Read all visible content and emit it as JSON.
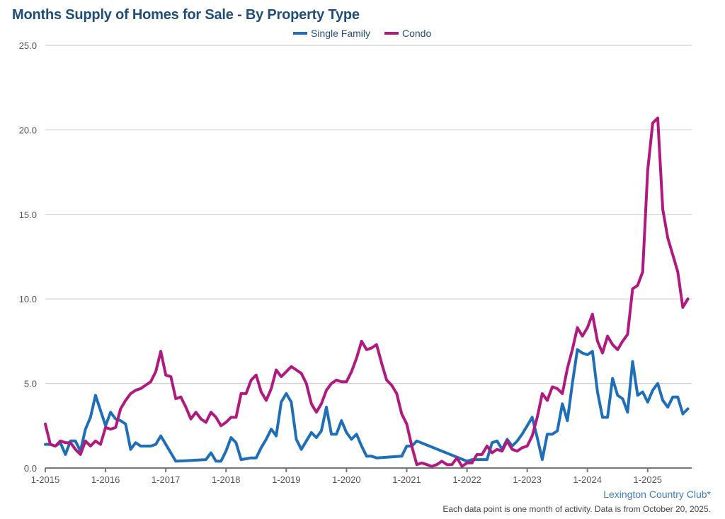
{
  "chart_data": {
    "type": "line",
    "title": "Months Supply of Homes for Sale - By Property Type",
    "xlabel": "",
    "ylabel": "",
    "ylim": [
      0,
      25
    ],
    "yticks": [
      "0.0",
      "5.0",
      "10.0",
      "15.0",
      "20.0",
      "25.0"
    ],
    "xticks": [
      "1-2015",
      "1-2016",
      "1-2017",
      "1-2018",
      "1-2019",
      "1-2020",
      "1-2021",
      "1-2022",
      "1-2023",
      "1-2024",
      "1-2025"
    ],
    "grid": true,
    "legend_position": "top-center",
    "series": [
      {
        "name": "Single Family",
        "color": "#1f6fb8",
        "points": [
          [
            "2015-01",
            1.4
          ],
          [
            "2015-02",
            1.4
          ],
          [
            "2015-03",
            1.3
          ],
          [
            "2015-04",
            1.5
          ],
          [
            "2015-05",
            0.8
          ],
          [
            "2015-06",
            1.6
          ],
          [
            "2015-07",
            1.6
          ],
          [
            "2015-08",
            1.0
          ],
          [
            "2015-09",
            2.3
          ],
          [
            "2015-10",
            3.0
          ],
          [
            "2015-11",
            4.3
          ],
          [
            "2015-12",
            3.4
          ],
          [
            "2016-01",
            2.5
          ],
          [
            "2016-02",
            3.3
          ],
          [
            "2016-03",
            2.9
          ],
          [
            "2016-04",
            2.8
          ],
          [
            "2016-05",
            2.6
          ],
          [
            "2016-06",
            1.1
          ],
          [
            "2016-07",
            1.5
          ],
          [
            "2016-08",
            1.3
          ],
          [
            "2016-09",
            1.3
          ],
          [
            "2016-10",
            1.3
          ],
          [
            "2016-11",
            1.4
          ],
          [
            "2016-12",
            1.9
          ],
          [
            "2017-01",
            1.4
          ],
          [
            "2017-03",
            0.4
          ],
          [
            "2017-09",
            0.5
          ],
          [
            "2017-10",
            0.9
          ],
          [
            "2017-11",
            0.4
          ],
          [
            "2017-12",
            0.4
          ],
          [
            "2018-01",
            1.0
          ],
          [
            "2018-02",
            1.8
          ],
          [
            "2018-03",
            1.5
          ],
          [
            "2018-04",
            0.5
          ],
          [
            "2018-06",
            0.6
          ],
          [
            "2018-07",
            0.6
          ],
          [
            "2018-08",
            1.2
          ],
          [
            "2018-09",
            1.7
          ],
          [
            "2018-10",
            2.3
          ],
          [
            "2018-11",
            1.9
          ],
          [
            "2018-12",
            3.9
          ],
          [
            "2019-01",
            4.4
          ],
          [
            "2019-02",
            3.9
          ],
          [
            "2019-03",
            1.7
          ],
          [
            "2019-04",
            1.1
          ],
          [
            "2019-05",
            1.6
          ],
          [
            "2019-06",
            2.1
          ],
          [
            "2019-07",
            1.8
          ],
          [
            "2019-08",
            2.2
          ],
          [
            "2019-09",
            3.6
          ],
          [
            "2019-10",
            2.0
          ],
          [
            "2019-11",
            2.0
          ],
          [
            "2019-12",
            2.8
          ],
          [
            "2020-01",
            2.1
          ],
          [
            "2020-02",
            1.7
          ],
          [
            "2020-03",
            2.0
          ],
          [
            "2020-04",
            1.3
          ],
          [
            "2020-05",
            0.7
          ],
          [
            "2020-06",
            0.7
          ],
          [
            "2020-07",
            0.6
          ],
          [
            "2020-12",
            0.7
          ],
          [
            "2021-01",
            1.3
          ],
          [
            "2021-02",
            1.3
          ],
          [
            "2021-03",
            1.6
          ],
          [
            "2022-01",
            0.4
          ],
          [
            "2022-02",
            0.5
          ],
          [
            "2022-05",
            0.5
          ],
          [
            "2022-06",
            1.5
          ],
          [
            "2022-07",
            1.6
          ],
          [
            "2022-08",
            1.1
          ],
          [
            "2022-09",
            1.7
          ],
          [
            "2022-10",
            1.3
          ],
          [
            "2022-11",
            1.6
          ],
          [
            "2022-12",
            2.0
          ],
          [
            "2023-01",
            2.5
          ],
          [
            "2023-02",
            3.0
          ],
          [
            "2023-03",
            1.8
          ],
          [
            "2023-04",
            0.5
          ],
          [
            "2023-05",
            2.0
          ],
          [
            "2023-06",
            2.0
          ],
          [
            "2023-07",
            2.2
          ],
          [
            "2023-08",
            3.8
          ],
          [
            "2023-09",
            2.8
          ],
          [
            "2023-10",
            5.0
          ],
          [
            "2023-11",
            7.0
          ],
          [
            "2023-12",
            6.8
          ],
          [
            "2024-01",
            6.7
          ],
          [
            "2024-02",
            6.9
          ],
          [
            "2024-03",
            4.5
          ],
          [
            "2024-04",
            3.0
          ],
          [
            "2024-05",
            3.0
          ],
          [
            "2024-06",
            5.3
          ],
          [
            "2024-07",
            4.3
          ],
          [
            "2024-08",
            4.1
          ],
          [
            "2024-09",
            3.3
          ],
          [
            "2024-10",
            6.3
          ],
          [
            "2024-11",
            4.3
          ],
          [
            "2024-12",
            4.5
          ],
          [
            "2025-01",
            3.9
          ],
          [
            "2025-02",
            4.6
          ],
          [
            "2025-03",
            5.0
          ],
          [
            "2025-04",
            4.0
          ],
          [
            "2025-05",
            3.6
          ],
          [
            "2025-06",
            4.2
          ],
          [
            "2025-07",
            4.2
          ],
          [
            "2025-08",
            3.2
          ],
          [
            "2025-09",
            3.5
          ]
        ]
      },
      {
        "name": "Condo",
        "color": "#b0197e",
        "points": [
          [
            "2015-01",
            2.6
          ],
          [
            "2015-02",
            1.4
          ],
          [
            "2015-03",
            1.3
          ],
          [
            "2015-04",
            1.6
          ],
          [
            "2015-05",
            1.5
          ],
          [
            "2015-06",
            1.5
          ],
          [
            "2015-07",
            1.1
          ],
          [
            "2015-08",
            0.8
          ],
          [
            "2015-09",
            1.6
          ],
          [
            "2015-10",
            1.3
          ],
          [
            "2015-11",
            1.6
          ],
          [
            "2015-12",
            1.4
          ],
          [
            "2016-01",
            2.4
          ],
          [
            "2016-02",
            2.3
          ],
          [
            "2016-03",
            2.4
          ],
          [
            "2016-04",
            3.5
          ],
          [
            "2016-05",
            4.0
          ],
          [
            "2016-06",
            4.4
          ],
          [
            "2016-07",
            4.6
          ],
          [
            "2016-08",
            4.7
          ],
          [
            "2016-09",
            4.9
          ],
          [
            "2016-10",
            5.1
          ],
          [
            "2016-11",
            5.7
          ],
          [
            "2016-12",
            6.9
          ],
          [
            "2017-01",
            5.5
          ],
          [
            "2017-02",
            5.4
          ],
          [
            "2017-03",
            4.1
          ],
          [
            "2017-04",
            4.2
          ],
          [
            "2017-05",
            3.6
          ],
          [
            "2017-06",
            2.9
          ],
          [
            "2017-07",
            3.3
          ],
          [
            "2017-08",
            2.9
          ],
          [
            "2017-09",
            2.7
          ],
          [
            "2017-10",
            3.3
          ],
          [
            "2017-11",
            3.0
          ],
          [
            "2017-12",
            2.5
          ],
          [
            "2018-01",
            2.7
          ],
          [
            "2018-02",
            3.0
          ],
          [
            "2018-03",
            3.0
          ],
          [
            "2018-04",
            4.4
          ],
          [
            "2018-05",
            4.4
          ],
          [
            "2018-06",
            5.2
          ],
          [
            "2018-07",
            5.5
          ],
          [
            "2018-08",
            4.5
          ],
          [
            "2018-09",
            4.0
          ],
          [
            "2018-10",
            4.7
          ],
          [
            "2018-11",
            5.8
          ],
          [
            "2018-12",
            5.4
          ],
          [
            "2019-01",
            5.7
          ],
          [
            "2019-02",
            6.0
          ],
          [
            "2019-03",
            5.8
          ],
          [
            "2019-04",
            5.6
          ],
          [
            "2019-05",
            5.0
          ],
          [
            "2019-06",
            3.8
          ],
          [
            "2019-07",
            3.3
          ],
          [
            "2019-08",
            3.8
          ],
          [
            "2019-09",
            4.6
          ],
          [
            "2019-10",
            5.0
          ],
          [
            "2019-11",
            5.2
          ],
          [
            "2019-12",
            5.1
          ],
          [
            "2020-01",
            5.1
          ],
          [
            "2020-02",
            5.7
          ],
          [
            "2020-03",
            6.5
          ],
          [
            "2020-04",
            7.5
          ],
          [
            "2020-05",
            7.0
          ],
          [
            "2020-06",
            7.1
          ],
          [
            "2020-07",
            7.3
          ],
          [
            "2020-08",
            6.2
          ],
          [
            "2020-09",
            5.2
          ],
          [
            "2020-10",
            4.9
          ],
          [
            "2020-11",
            4.4
          ],
          [
            "2020-12",
            3.2
          ],
          [
            "2021-01",
            2.6
          ],
          [
            "2021-02",
            1.3
          ],
          [
            "2021-03",
            0.2
          ],
          [
            "2021-04",
            0.3
          ],
          [
            "2021-05",
            0.2
          ],
          [
            "2021-06",
            0.1
          ],
          [
            "2021-07",
            0.2
          ],
          [
            "2021-08",
            0.4
          ],
          [
            "2021-09",
            0.2
          ],
          [
            "2021-10",
            0.2
          ],
          [
            "2021-11",
            0.6
          ],
          [
            "2021-12",
            0.1
          ],
          [
            "2022-01",
            0.3
          ],
          [
            "2022-02",
            0.3
          ],
          [
            "2022-03",
            0.8
          ],
          [
            "2022-04",
            0.8
          ],
          [
            "2022-05",
            1.3
          ],
          [
            "2022-06",
            0.9
          ],
          [
            "2022-07",
            1.1
          ],
          [
            "2022-08",
            1.0
          ],
          [
            "2022-09",
            1.6
          ],
          [
            "2022-10",
            1.1
          ],
          [
            "2022-11",
            1.0
          ],
          [
            "2022-12",
            1.2
          ],
          [
            "2023-01",
            1.3
          ],
          [
            "2023-02",
            1.9
          ],
          [
            "2023-03",
            3.0
          ],
          [
            "2023-04",
            4.4
          ],
          [
            "2023-05",
            4.0
          ],
          [
            "2023-06",
            4.8
          ],
          [
            "2023-07",
            4.7
          ],
          [
            "2023-08",
            4.4
          ],
          [
            "2023-09",
            5.9
          ],
          [
            "2023-10",
            7.0
          ],
          [
            "2023-11",
            8.3
          ],
          [
            "2023-12",
            7.8
          ],
          [
            "2024-01",
            8.3
          ],
          [
            "2024-02",
            9.1
          ],
          [
            "2024-03",
            7.5
          ],
          [
            "2024-04",
            6.8
          ],
          [
            "2024-05",
            7.8
          ],
          [
            "2024-06",
            7.3
          ],
          [
            "2024-07",
            7.0
          ],
          [
            "2024-08",
            7.5
          ],
          [
            "2024-09",
            7.9
          ],
          [
            "2024-10",
            10.6
          ],
          [
            "2024-11",
            10.8
          ],
          [
            "2024-12",
            11.6
          ],
          [
            "2025-01",
            17.6
          ],
          [
            "2025-02",
            20.4
          ],
          [
            "2025-03",
            20.7
          ],
          [
            "2025-04",
            15.3
          ],
          [
            "2025-05",
            13.6
          ],
          [
            "2025-06",
            12.6
          ],
          [
            "2025-07",
            11.6
          ],
          [
            "2025-08",
            9.5
          ],
          [
            "2025-09",
            10.0
          ]
        ]
      }
    ]
  },
  "footer": {
    "credit": "Lexington Country Club*",
    "note": "Each data point is one month of activity. Data is from October 20, 2025."
  }
}
